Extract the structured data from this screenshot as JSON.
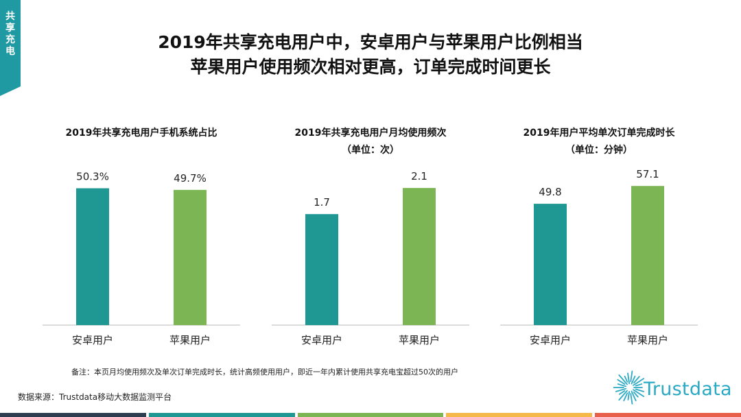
{
  "side_tab": {
    "label": "共享充电"
  },
  "title": {
    "line1": "2019年共享充电用户中，安卓用户与苹果用户比例相当",
    "line2": "苹果用户使用频次相对更高，订单完成时间更长"
  },
  "colors": {
    "android": "#1f9894",
    "apple": "#7cb654",
    "accent": "#1f9aa3",
    "bottom_bar": [
      "#2c3e50",
      "#1f9894",
      "#7cb654",
      "#f5b94a",
      "#e8604c"
    ]
  },
  "chart_data": [
    {
      "type": "bar",
      "title": "2019年共享充电用户手机系统占比",
      "subtitle": "",
      "categories": [
        "安卓用户",
        "苹果用户"
      ],
      "values": [
        50.3,
        49.7
      ],
      "value_labels": [
        "50.3%",
        "49.7%"
      ],
      "ylim": [
        0,
        60
      ],
      "grid": false,
      "legend": "none"
    },
    {
      "type": "bar",
      "title": "2019年共享充电用户月均使用频次",
      "subtitle": "（单位：次）",
      "categories": [
        "安卓用户",
        "苹果用户"
      ],
      "values": [
        1.7,
        2.1
      ],
      "value_labels": [
        "1.7",
        "2.1"
      ],
      "ylim": [
        0,
        2.5
      ],
      "grid": false,
      "legend": "none"
    },
    {
      "type": "bar",
      "title": "2019年用户平均单次订单完成时长",
      "subtitle": "（单位：分钟）",
      "categories": [
        "安卓用户",
        "苹果用户"
      ],
      "values": [
        49.8,
        57.1
      ],
      "value_labels": [
        "49.8",
        "57.1"
      ],
      "ylim": [
        0,
        67
      ],
      "grid": false,
      "legend": "none"
    }
  ],
  "footer": {
    "note": "备注：本页月均使用频次及单次订单完成时长，统计高频使用用户，即近一年内累计使用共享充电宝超过50次的用户",
    "source": "数据来源：Trustdata移动大数据监测平台"
  },
  "logo": {
    "text": "Trustdata"
  }
}
